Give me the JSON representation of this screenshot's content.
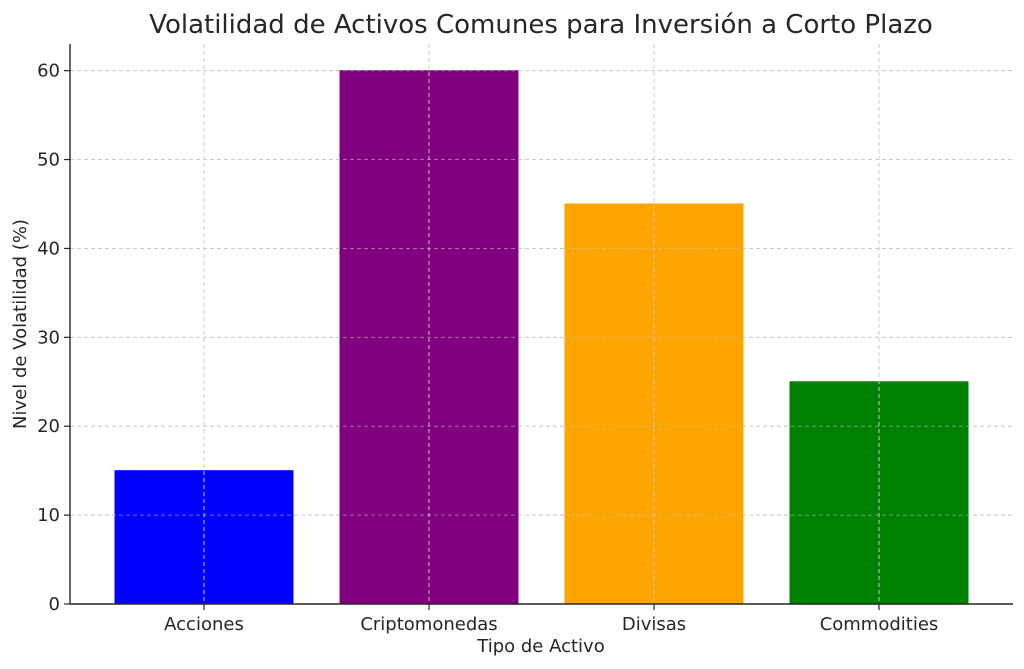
{
  "chart_data": {
    "type": "bar",
    "title": "Volatilidad de Activos Comunes para Inversión a Corto Plazo",
    "xlabel": "Tipo de Activo",
    "ylabel": "Nivel de Volatilidad (%)",
    "categories": [
      "Acciones",
      "Criptomonedas",
      "Divisas",
      "Commodities"
    ],
    "values": [
      15,
      60,
      45,
      25
    ],
    "colors": [
      "#0000ff",
      "#800080",
      "#ffa500",
      "#008000"
    ],
    "ylim": [
      0,
      63
    ],
    "yticks": [
      0,
      10,
      20,
      30,
      40,
      50,
      60
    ],
    "grid": true,
    "legend": "none"
  }
}
